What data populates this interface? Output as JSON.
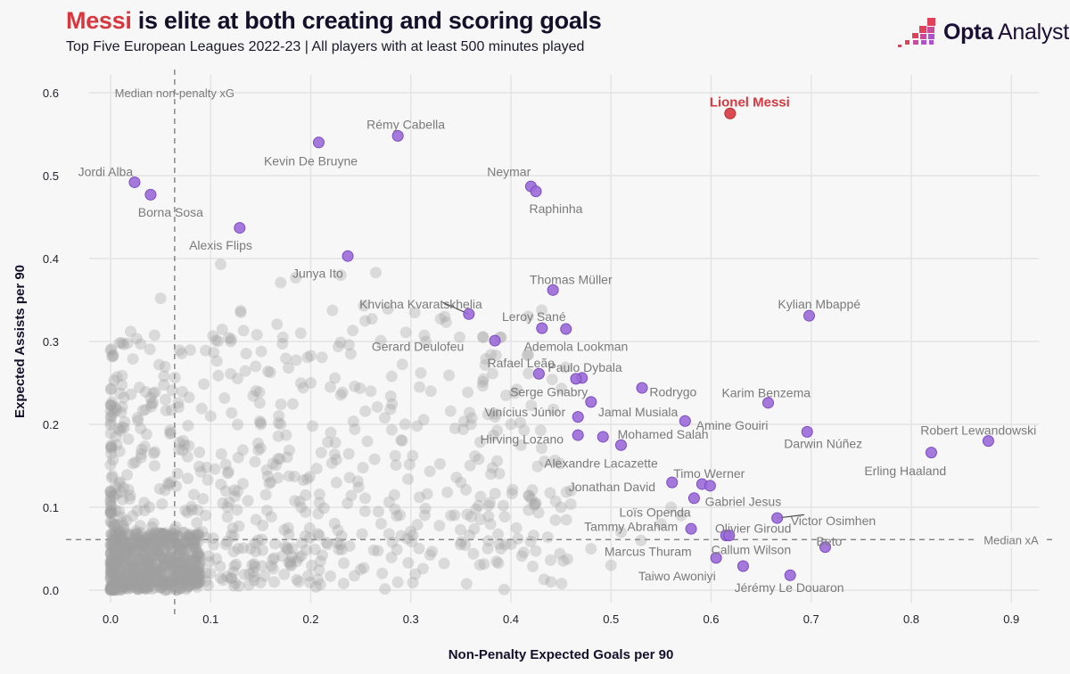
{
  "header": {
    "title_highlight": "Messi",
    "title_rest": " is elite at both creating and scoring goals",
    "subtitle": "Top Five European Leagues 2022-23 | All players with at least 500 minutes played",
    "logo_bold": "Opta",
    "logo_rest": " Analyst"
  },
  "colors": {
    "highlight_red": "#d7373f",
    "player_purple": "#9b6ad8",
    "player_purple_stroke": "#7a4cc0",
    "background_dot": "#a0a0a0",
    "grid": "#e4e4e4",
    "background": "#f7f7f7"
  },
  "chart_data": {
    "type": "scatter",
    "title": "Messi is elite at both creating and scoring goals",
    "subtitle": "Top Five European Leagues 2022-23 | All players with at least 500 minutes played",
    "xlabel": "Non-Penalty Expected Goals per 90",
    "ylabel": "Expected Assists per 90",
    "xlim": [
      -0.045,
      0.955
    ],
    "ylim": [
      -0.035,
      0.635
    ],
    "xticks": [
      0.0,
      0.1,
      0.2,
      0.3,
      0.4,
      0.5,
      0.6,
      0.7,
      0.8,
      0.9
    ],
    "xtick_labels": [
      "0.0",
      "0.1",
      "0.2",
      "0.3",
      "0.4",
      "0.5",
      "0.6",
      "0.7",
      "0.8",
      "0.9"
    ],
    "yticks": [
      0.0,
      0.1,
      0.2,
      0.3,
      0.4,
      0.5,
      0.6
    ],
    "ytick_labels": [
      "0.0",
      "0.1",
      "0.2",
      "0.3",
      "0.4",
      "0.5",
      "0.6"
    ],
    "grid": true,
    "medians": {
      "xg": 0.064,
      "xa": 0.061,
      "xg_label": "Median non-penalty xG",
      "xa_label": "Median xA"
    },
    "featured": {
      "name": "Lionel Messi",
      "x": 0.619,
      "y": 0.575
    },
    "highlighted_players": [
      {
        "name": "Rémy Cabella",
        "x": 0.287,
        "y": 0.548
      },
      {
        "name": "Kevin De Bruyne",
        "x": 0.208,
        "y": 0.54
      },
      {
        "name": "Jordi Alba",
        "x": 0.024,
        "y": 0.492
      },
      {
        "name": "Borna Sosa",
        "x": 0.04,
        "y": 0.477
      },
      {
        "name": "Neymar",
        "x": 0.42,
        "y": 0.487
      },
      {
        "name": "Raphinha",
        "x": 0.425,
        "y": 0.481
      },
      {
        "name": "Alexis Flips",
        "x": 0.129,
        "y": 0.437
      },
      {
        "name": "Junya Ito",
        "x": 0.237,
        "y": 0.403
      },
      {
        "name": "Thomas Müller",
        "x": 0.442,
        "y": 0.362
      },
      {
        "name": "Khvicha Kvaratskhelia",
        "x": 0.358,
        "y": 0.333
      },
      {
        "name": "Kylian Mbappé",
        "x": 0.698,
        "y": 0.331
      },
      {
        "name": "Leroy Sané",
        "x": 0.431,
        "y": 0.316
      },
      {
        "name": "Ademola Lookman",
        "x": 0.455,
        "y": 0.315
      },
      {
        "name": "Gerard Deulofeu",
        "x": 0.384,
        "y": 0.301
      },
      {
        "name": "Rafael Leão",
        "x": 0.428,
        "y": 0.261
      },
      {
        "name": "Paulo Dybala",
        "x": 0.471,
        "y": 0.256
      },
      {
        "name": "",
        "x": 0.465,
        "y": 0.255
      },
      {
        "name": "Rodrygo",
        "x": 0.531,
        "y": 0.244
      },
      {
        "name": "Serge Gnabry",
        "x": 0.48,
        "y": 0.227
      },
      {
        "name": "Karim Benzema",
        "x": 0.657,
        "y": 0.226
      },
      {
        "name": "Vinícius Júnior",
        "x": 0.467,
        "y": 0.209
      },
      {
        "name": "Jamal Musiala",
        "x": 0.48,
        "y": 0.227
      },
      {
        "name": "Amine Gouiri",
        "x": 0.574,
        "y": 0.204
      },
      {
        "name": "Darwin Núñez",
        "x": 0.696,
        "y": 0.191
      },
      {
        "name": "Hirving Lozano",
        "x": 0.467,
        "y": 0.187
      },
      {
        "name": "Mohamed Salah",
        "x": 0.492,
        "y": 0.185
      },
      {
        "name": "Robert Lewandowski",
        "x": 0.877,
        "y": 0.18
      },
      {
        "name": "Alexandre Lacazette",
        "x": 0.51,
        "y": 0.175
      },
      {
        "name": "Erling Haaland",
        "x": 0.82,
        "y": 0.166
      },
      {
        "name": "Jonathan David",
        "x": 0.561,
        "y": 0.13
      },
      {
        "name": "Timo Werner",
        "x": 0.591,
        "y": 0.128
      },
      {
        "name": "",
        "x": 0.599,
        "y": 0.126
      },
      {
        "name": "Gabriel Jesus",
        "x": 0.583,
        "y": 0.111
      },
      {
        "name": "Loïs Openda",
        "x": 0.583,
        "y": 0.111
      },
      {
        "name": "Victor Osimhen",
        "x": 0.666,
        "y": 0.087
      },
      {
        "name": "Tammy Abraham",
        "x": 0.58,
        "y": 0.074
      },
      {
        "name": "Olivier Giroud",
        "x": 0.615,
        "y": 0.066
      },
      {
        "name": "",
        "x": 0.618,
        "y": 0.066
      },
      {
        "name": "Beto",
        "x": 0.714,
        "y": 0.052
      },
      {
        "name": "Marcus Thuram",
        "x": 0.605,
        "y": 0.039
      },
      {
        "name": "Callum Wilson",
        "x": 0.632,
        "y": 0.029
      },
      {
        "name": "Taiwo Awoniyi",
        "x": 0.632,
        "y": 0.029
      },
      {
        "name": "Jérémy Le Douaron",
        "x": 0.679,
        "y": 0.018
      }
    ],
    "labels": [
      {
        "text": "Rémy Cabella",
        "x": 0.295,
        "y": 0.562,
        "anchor": "middle"
      },
      {
        "text": "Kevin De Bruyne",
        "x": 0.2,
        "y": 0.518,
        "anchor": "middle"
      },
      {
        "text": "Jordi Alba",
        "x": -0.005,
        "y": 0.505,
        "anchor": "middle"
      },
      {
        "text": "Borna Sosa",
        "x": 0.06,
        "y": 0.456,
        "anchor": "middle"
      },
      {
        "text": "Neymar",
        "x": 0.398,
        "y": 0.505,
        "anchor": "middle"
      },
      {
        "text": "Raphinha",
        "x": 0.445,
        "y": 0.46,
        "anchor": "middle"
      },
      {
        "text": "Alexis Flips",
        "x": 0.11,
        "y": 0.416,
        "anchor": "middle"
      },
      {
        "text": "Junya Ito",
        "x": 0.207,
        "y": 0.382,
        "anchor": "middle"
      },
      {
        "text": "Thomas Müller",
        "x": 0.46,
        "y": 0.375,
        "anchor": "middle"
      },
      {
        "text": "Khvicha Kvaratskhelia",
        "x": 0.31,
        "y": 0.345,
        "anchor": "middle"
      },
      {
        "text": "Kylian Mbappé",
        "x": 0.708,
        "y": 0.345,
        "anchor": "middle"
      },
      {
        "text": "Leroy Sané",
        "x": 0.423,
        "y": 0.33,
        "anchor": "middle"
      },
      {
        "text": "Ademola Lookman",
        "x": 0.465,
        "y": 0.294,
        "anchor": "middle"
      },
      {
        "text": "Gerard Deulofeu",
        "x": 0.307,
        "y": 0.294,
        "anchor": "middle"
      },
      {
        "text": "Rafael Leão",
        "x": 0.41,
        "y": 0.274,
        "anchor": "middle"
      },
      {
        "text": "Paulo Dybala",
        "x": 0.474,
        "y": 0.269,
        "anchor": "middle"
      },
      {
        "text": "Rodrygo",
        "x": 0.562,
        "y": 0.239,
        "anchor": "middle"
      },
      {
        "text": "Serge Gnabry",
        "x": 0.438,
        "y": 0.239,
        "anchor": "middle"
      },
      {
        "text": "Karim Benzema",
        "x": 0.655,
        "y": 0.238,
        "anchor": "middle"
      },
      {
        "text": "Vinícius Júnior",
        "x": 0.414,
        "y": 0.215,
        "anchor": "middle"
      },
      {
        "text": "Jamal Musiala",
        "x": 0.527,
        "y": 0.215,
        "anchor": "middle"
      },
      {
        "text": "Amine Gouiri",
        "x": 0.621,
        "y": 0.199,
        "anchor": "middle"
      },
      {
        "text": "Darwin Núñez",
        "x": 0.712,
        "y": 0.177,
        "anchor": "middle"
      },
      {
        "text": "Hirving Lozano",
        "x": 0.411,
        "y": 0.182,
        "anchor": "middle"
      },
      {
        "text": "Mohamed Salah",
        "x": 0.552,
        "y": 0.188,
        "anchor": "middle"
      },
      {
        "text": "Robert Lewandowski",
        "x": 0.867,
        "y": 0.193,
        "anchor": "middle"
      },
      {
        "text": "Alexandre Lacazette",
        "x": 0.49,
        "y": 0.153,
        "anchor": "middle"
      },
      {
        "text": "Erling Haaland",
        "x": 0.794,
        "y": 0.144,
        "anchor": "middle"
      },
      {
        "text": "Jonathan David",
        "x": 0.501,
        "y": 0.125,
        "anchor": "middle"
      },
      {
        "text": "Timo Werner",
        "x": 0.598,
        "y": 0.141,
        "anchor": "middle"
      },
      {
        "text": "Gabriel Jesus",
        "x": 0.632,
        "y": 0.107,
        "anchor": "middle"
      },
      {
        "text": "Loïs Openda",
        "x": 0.544,
        "y": 0.094,
        "anchor": "middle"
      },
      {
        "text": "Victor Osimhen",
        "x": 0.722,
        "y": 0.084,
        "anchor": "middle"
      },
      {
        "text": "Tammy Abraham",
        "x": 0.52,
        "y": 0.077,
        "anchor": "middle"
      },
      {
        "text": "Olivier Giroud",
        "x": 0.642,
        "y": 0.075,
        "anchor": "middle"
      },
      {
        "text": "Beto",
        "x": 0.718,
        "y": 0.059,
        "anchor": "middle"
      },
      {
        "text": "Marcus Thuram",
        "x": 0.537,
        "y": 0.047,
        "anchor": "middle"
      },
      {
        "text": "Callum Wilson",
        "x": 0.64,
        "y": 0.049,
        "anchor": "middle"
      },
      {
        "text": "Taiwo Awoniyi",
        "x": 0.566,
        "y": 0.017,
        "anchor": "middle"
      },
      {
        "text": "Jérémy Le Douaron",
        "x": 0.678,
        "y": 0.003,
        "anchor": "middle"
      }
    ],
    "leader_lines": [
      {
        "from": [
          0.358,
          0.333
        ],
        "to": [
          0.332,
          0.347
        ],
        "label": "Khvicha Kvaratskhelia"
      },
      {
        "from": [
          0.666,
          0.087
        ],
        "to": [
          0.693,
          0.091
        ],
        "label": "Victor Osimhen"
      }
    ],
    "background_points_note": "Approximately 1,300 other players shown as translucent grey dots, concentrated near the origin and spreading out to roughly (0.45, 0.40)",
    "background_points_sample": [
      [
        0.05,
        0.352
      ],
      [
        0.11,
        0.393
      ],
      [
        0.23,
        0.38
      ],
      [
        0.265,
        0.383
      ],
      [
        0.17,
        0.371
      ],
      [
        0.185,
        0.377
      ],
      [
        0.13,
        0.335
      ],
      [
        0.13,
        0.337
      ],
      [
        0.295,
        0.311
      ],
      [
        0.19,
        0.31
      ],
      [
        0.27,
        0.301
      ],
      [
        0.315,
        0.3
      ],
      [
        0.02,
        0.312
      ],
      [
        0.03,
        0.297
      ],
      [
        0.12,
        0.3
      ],
      [
        0.145,
        0.27
      ],
      [
        0.375,
        0.279
      ],
      [
        0.38,
        0.284
      ],
      [
        0.39,
        0.305
      ],
      [
        0.24,
        0.285
      ],
      [
        0.28,
        0.234
      ],
      [
        0.26,
        0.24
      ],
      [
        0.03,
        0.195
      ],
      [
        0.06,
        0.19
      ],
      [
        0.1,
        0.21
      ],
      [
        0.31,
        0.262
      ],
      [
        0.32,
        0.24
      ],
      [
        0.36,
        0.2
      ],
      [
        0.4,
        0.2
      ],
      [
        0.41,
        0.175
      ],
      [
        0.38,
        0.14
      ],
      [
        0.35,
        0.13
      ],
      [
        0.34,
        0.09
      ],
      [
        0.46,
        0.12
      ],
      [
        0.45,
        0.1
      ],
      [
        0.51,
        0.07
      ],
      [
        0.53,
        0.06
      ],
      [
        0.55,
        0.08
      ],
      [
        0.39,
        0.05
      ],
      [
        0.44,
        0.01
      ],
      [
        0.48,
        0.05
      ],
      [
        0.5,
        0.03
      ],
      [
        0.57,
        0.09
      ],
      [
        0.56,
        0.1
      ],
      [
        0.2,
        0.25
      ],
      [
        0.17,
        0.2
      ],
      [
        0.22,
        0.19
      ],
      [
        0.15,
        0.2
      ]
    ]
  }
}
